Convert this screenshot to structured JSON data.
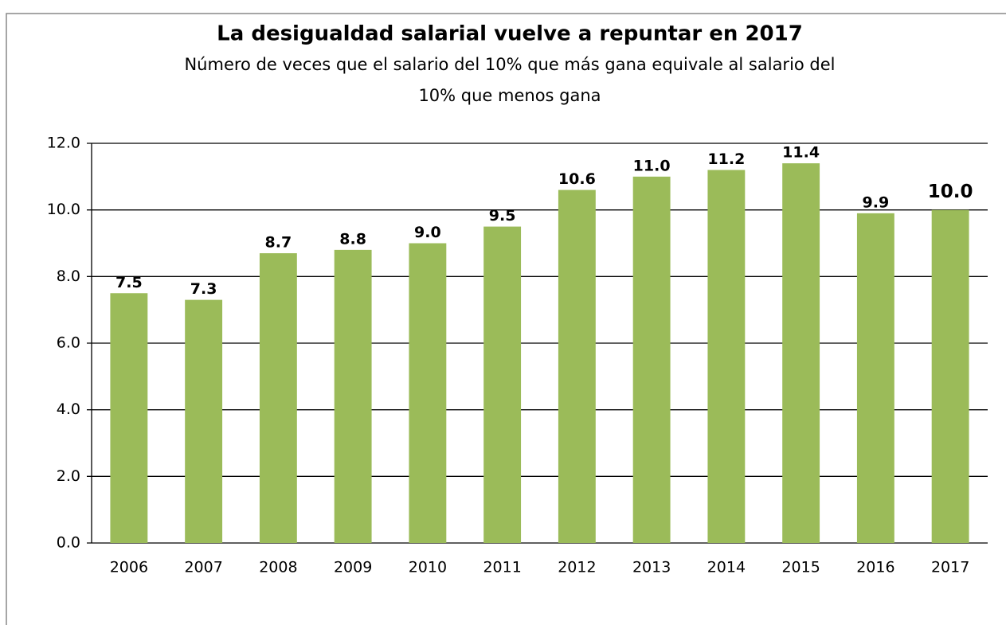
{
  "chart_data": {
    "type": "bar",
    "title": "La desigualdad salarial  vuelve a repuntar en 2017",
    "subtitle": [
      "Número de veces que el salario del 10% que más gana equivale al salario del",
      "10% que menos gana"
    ],
    "categories": [
      "2006",
      "2007",
      "2008",
      "2009",
      "2010",
      "2011",
      "2012",
      "2013",
      "2014",
      "2015",
      "2016",
      "2017"
    ],
    "values": [
      7.5,
      7.3,
      8.7,
      8.8,
      9.0,
      9.5,
      10.6,
      11.0,
      11.2,
      11.4,
      9.9,
      10.0
    ],
    "value_labels": [
      "7.5",
      "7.3",
      "8.7",
      "8.8",
      "9.0",
      "9.5",
      "10.6",
      "11.0",
      "11.2",
      "11.4",
      "9.9",
      "10.0"
    ],
    "color": "#9bbb59",
    "ylim": [
      0,
      12
    ],
    "yticks": [
      {
        "value": 0,
        "label": "0.0"
      },
      {
        "value": 2,
        "label": "2.0"
      },
      {
        "value": 4,
        "label": "4.0"
      },
      {
        "value": 6,
        "label": "6.0"
      },
      {
        "value": 8,
        "label": "8.0"
      },
      {
        "value": 10,
        "label": "10.0"
      },
      {
        "value": 12,
        "label": "12.0"
      }
    ],
    "grid": true
  }
}
